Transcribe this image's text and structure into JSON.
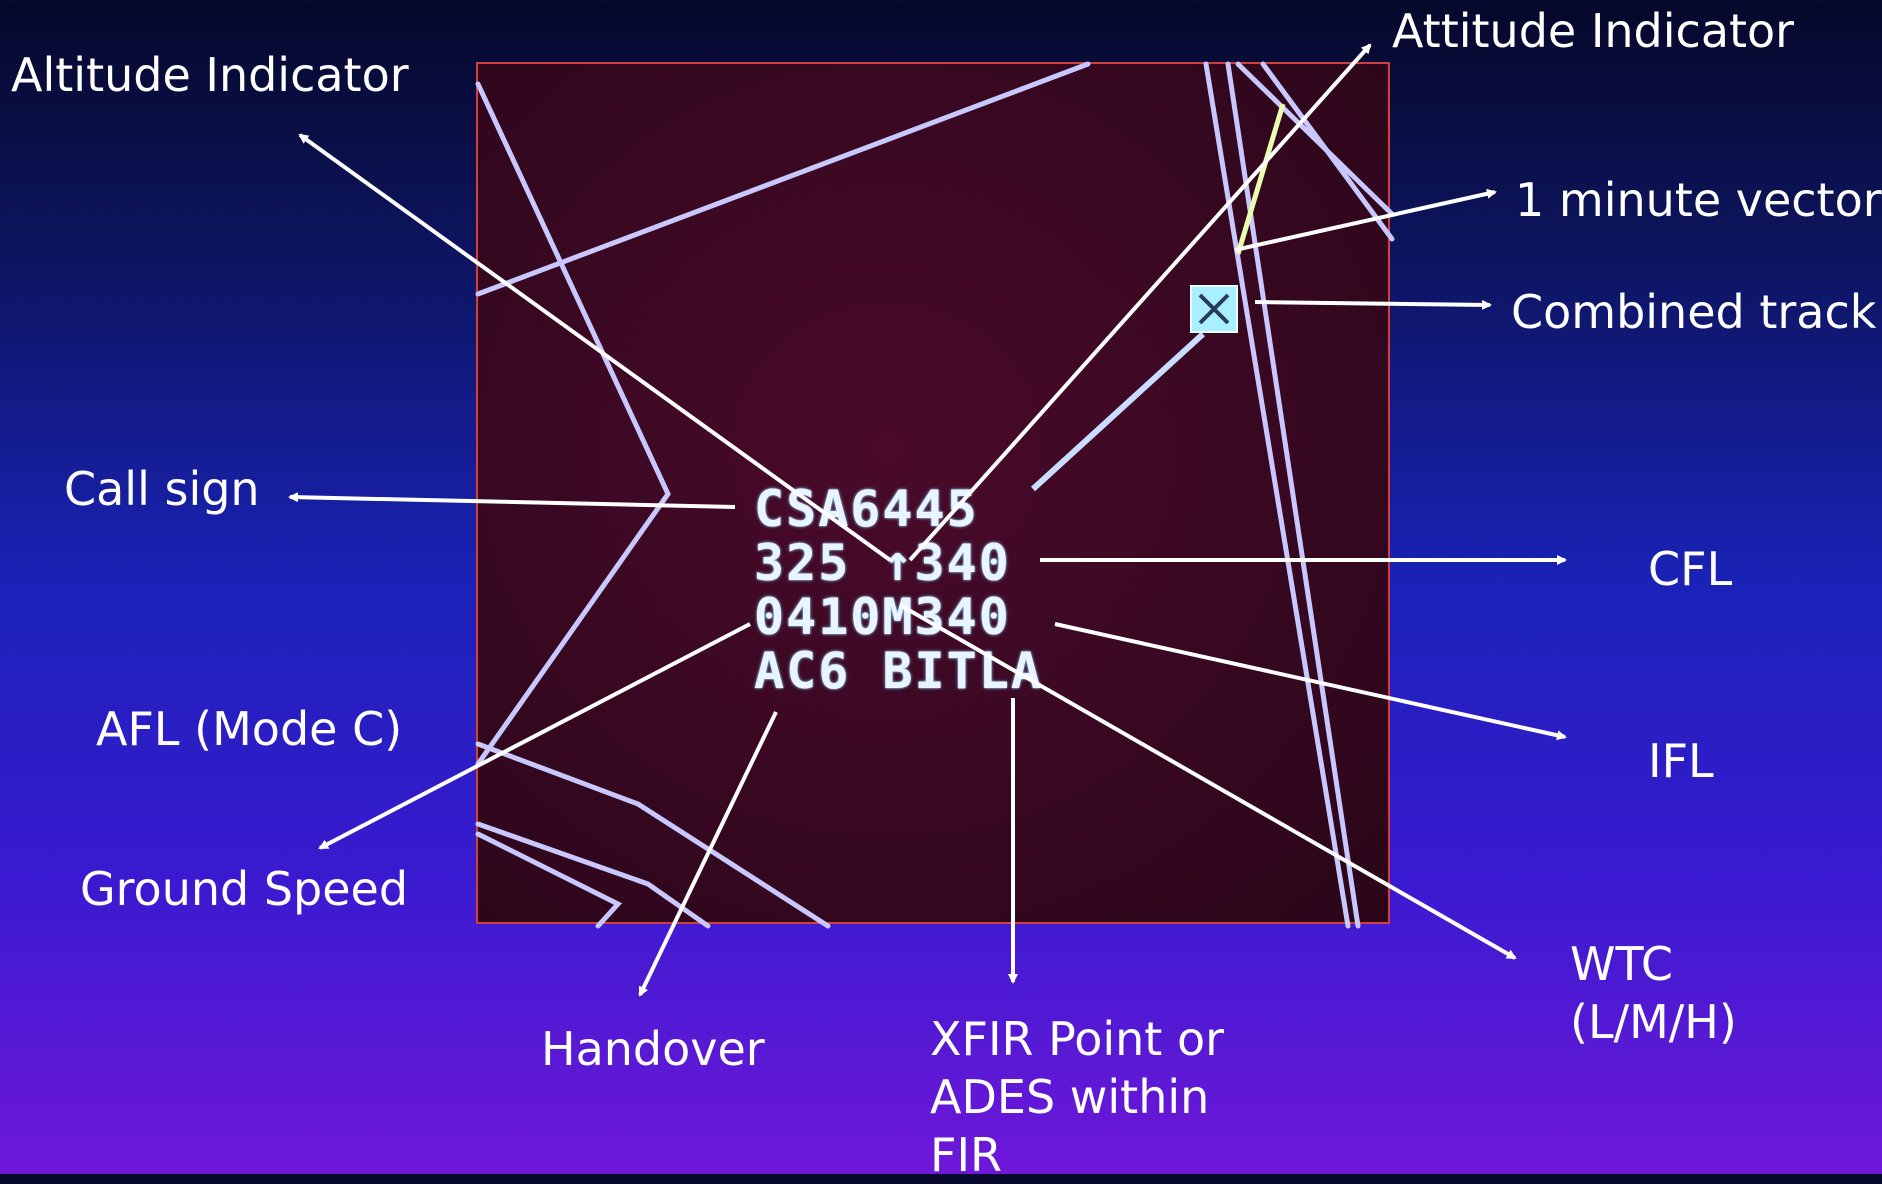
{
  "labels": {
    "altitude_indicator": "Altitude Indicator",
    "attitude_indicator": "Attitude Indicator",
    "one_minute_vector": "1 minute vector",
    "combined_track": "Combined track",
    "call_sign": "Call sign",
    "cfl": "CFL",
    "afl_mode_c": "AFL (Mode C)",
    "ifl": "IFL",
    "ground_speed": "Ground Speed",
    "wtc_line1": "WTC",
    "wtc_line2": "(L/M/H)",
    "handover": "Handover",
    "xfir_line1": "XFIR Point or",
    "xfir_line2": "ADES within",
    "xfir_line3": "FIR"
  },
  "radar_tag": {
    "line1": "CSA6445",
    "line2": "325 ↑340",
    "line3": "0410M340",
    "line4": "AC6 BITLA"
  },
  "colors": {
    "arrow": "#ffffff",
    "radar_lines": "#c8c8ff",
    "track_symbol": "#a8f0ff",
    "radar_border": "#d04040"
  }
}
